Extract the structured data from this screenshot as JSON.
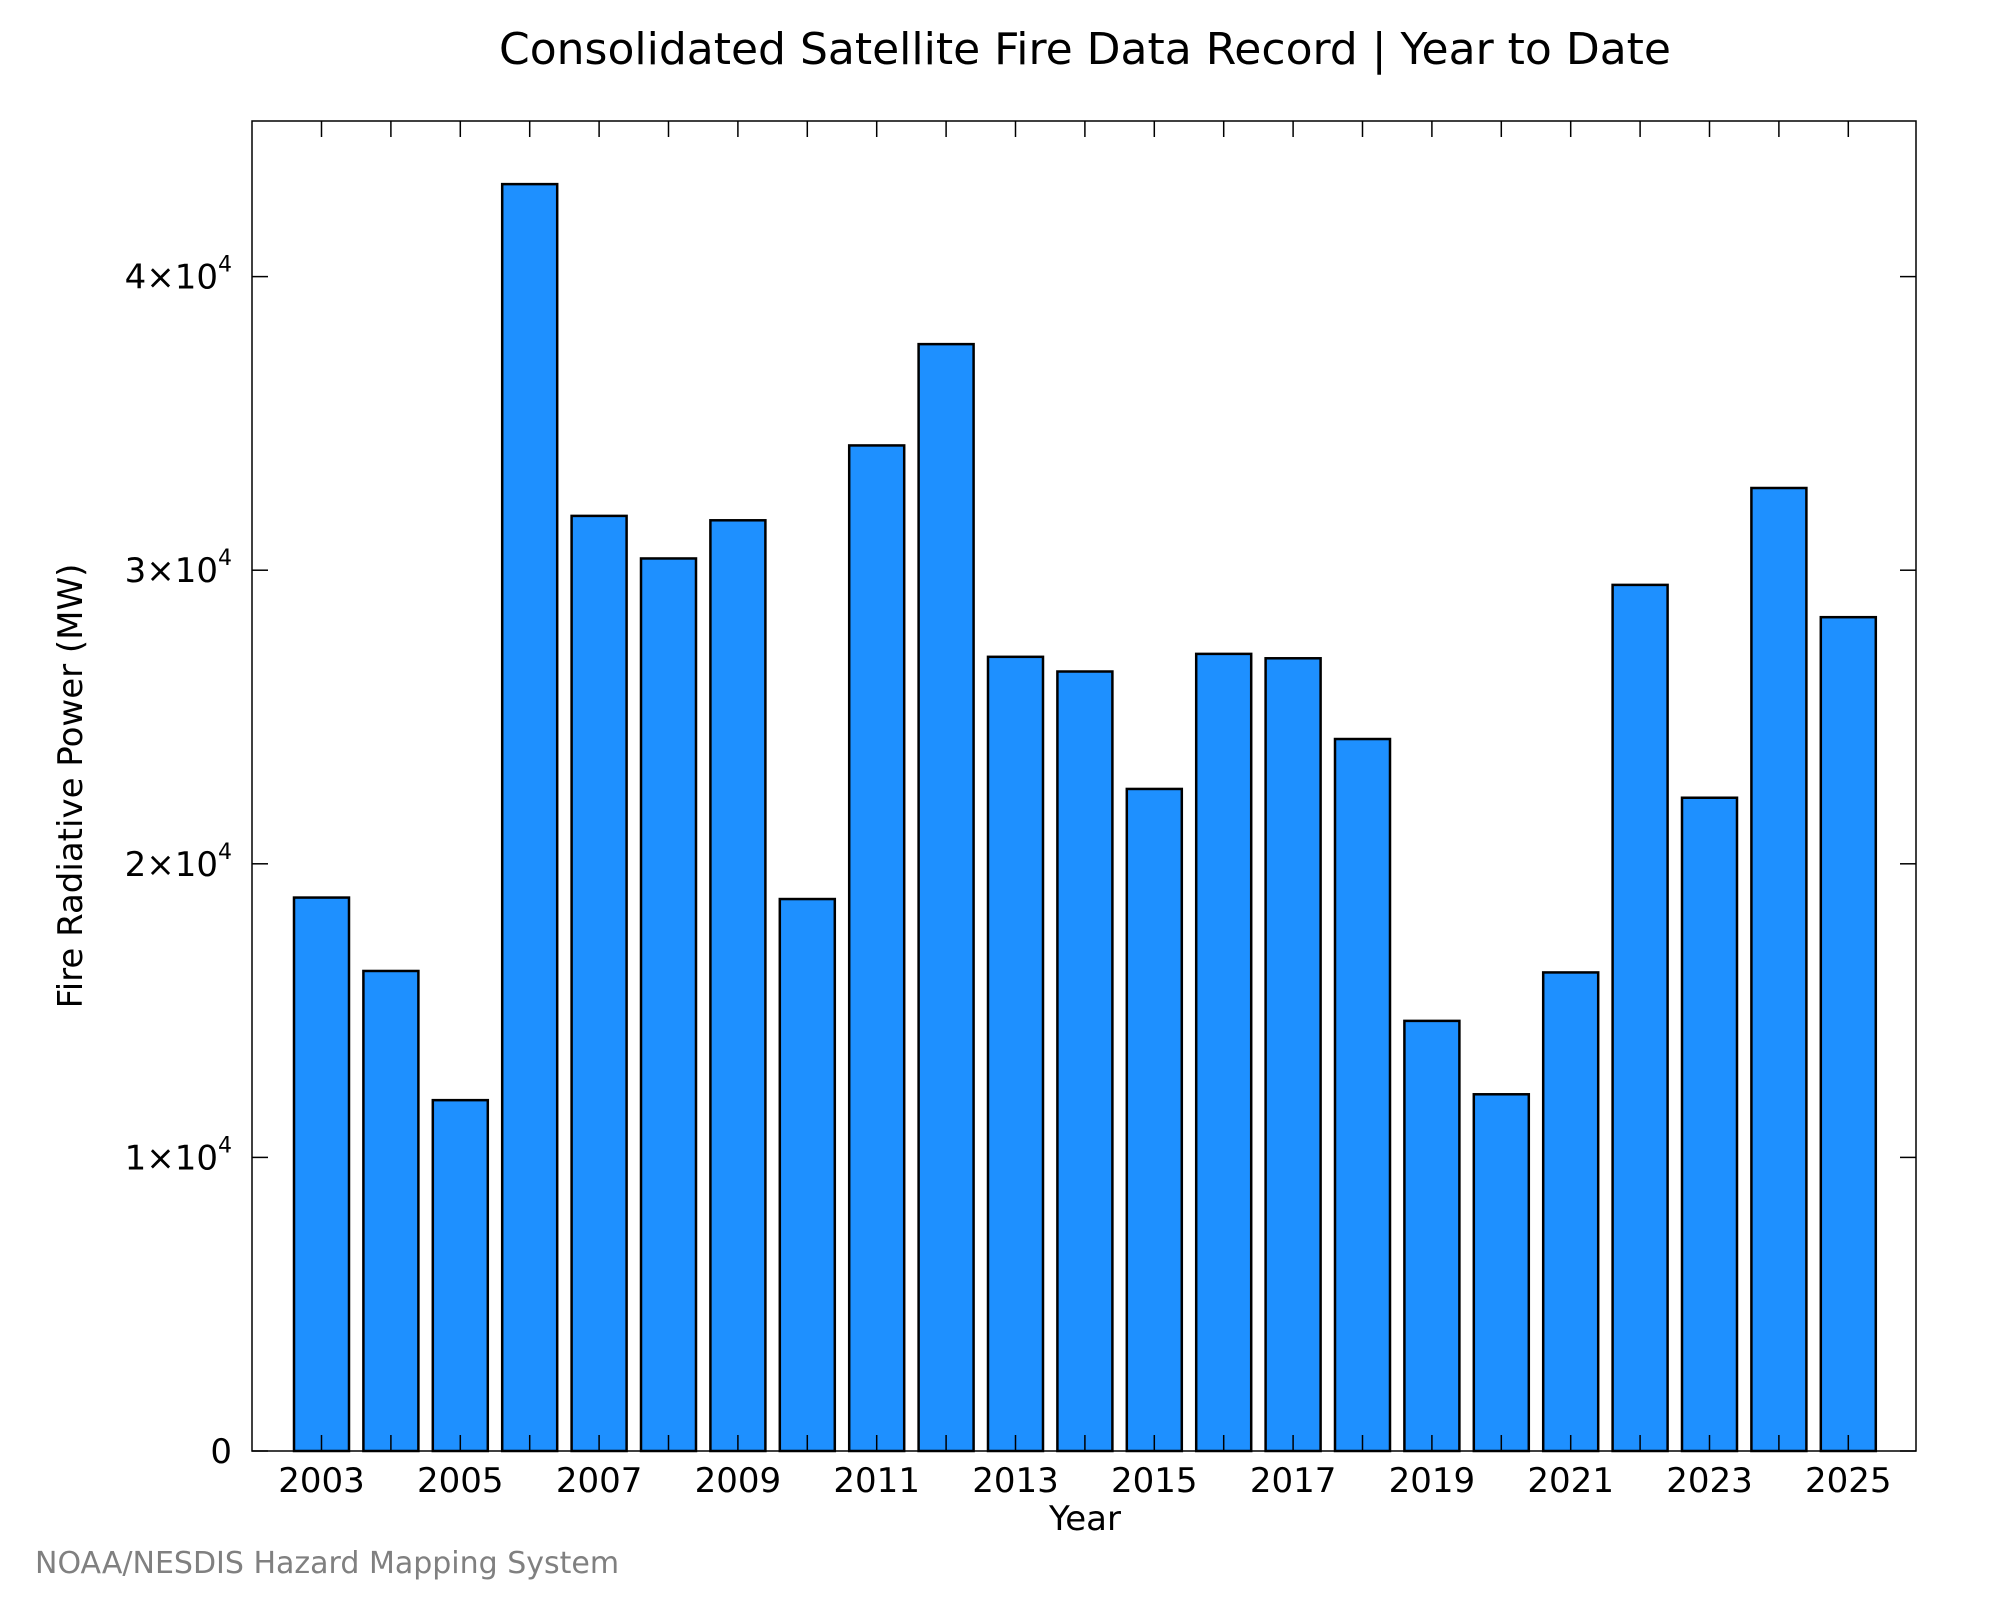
{
  "chart_data": {
    "type": "bar",
    "title": "Consolidated Satellite Fire Data Record | Year to Date",
    "xlabel": "Year",
    "ylabel": "Fire Radiative Power (MW)",
    "ylim": [
      0,
      45300
    ],
    "grid": false,
    "bar_color": "#1e90ff",
    "bar_edge_color": "#000000",
    "categories": [
      2003,
      2004,
      2005,
      2006,
      2007,
      2008,
      2009,
      2010,
      2011,
      2012,
      2013,
      2014,
      2015,
      2016,
      2017,
      2018,
      2019,
      2020,
      2021,
      2022,
      2023,
      2024,
      2025
    ],
    "values": [
      18850,
      16350,
      11950,
      43150,
      31850,
      30400,
      31700,
      18800,
      34250,
      37700,
      27050,
      26550,
      22550,
      27150,
      27000,
      24250,
      14650,
      12150,
      16300,
      29500,
      22250,
      32800,
      28400
    ],
    "x_tick_labels": [
      "2003",
      "2005",
      "2007",
      "2009",
      "2011",
      "2013",
      "2015",
      "2017",
      "2019",
      "2021",
      "2023",
      "2025"
    ],
    "y_ticks": [
      {
        "value": 0,
        "mantissa": "0",
        "exponent": ""
      },
      {
        "value": 10000,
        "mantissa": "1×10",
        "exponent": "4"
      },
      {
        "value": 20000,
        "mantissa": "2×10",
        "exponent": "4"
      },
      {
        "value": 30000,
        "mantissa": "3×10",
        "exponent": "4"
      },
      {
        "value": 40000,
        "mantissa": "4×10",
        "exponent": "4"
      }
    ]
  },
  "credit": "NOAA/NESDIS Hazard Mapping System"
}
